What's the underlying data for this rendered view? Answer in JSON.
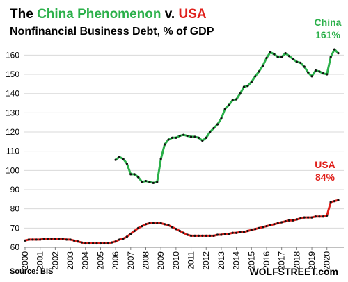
{
  "title": {
    "prefix": "The ",
    "china_part": "China Phenomenon",
    "middle": " v. ",
    "usa_part": "USA",
    "china_color": "#2bb04a",
    "usa_color": "#e0201b"
  },
  "subtitle": "Nonfinancial Business Debt, % of GDP",
  "source": "Source: BIS",
  "brand": "WOLFSTREET.com",
  "chart_data": {
    "type": "line",
    "title": "The China Phenomenon v. USA",
    "subtitle": "Nonfinancial Business Debt, % of GDP",
    "xlabel": "",
    "ylabel": "",
    "x_range": [
      2000.0,
      2020.75
    ],
    "ylim": [
      60,
      167
    ],
    "y_ticks": [
      60,
      70,
      80,
      90,
      100,
      110,
      120,
      130,
      140,
      150,
      160
    ],
    "x_ticks": [
      "2000",
      "2001",
      "2002",
      "2003",
      "2004",
      "2005",
      "2006",
      "2007",
      "2008",
      "2009",
      "2010",
      "2011",
      "2012",
      "2013",
      "2014",
      "2015",
      "2016",
      "2017",
      "2018",
      "2019",
      "2020"
    ],
    "grid": "horizontal",
    "series": [
      {
        "name": "China",
        "color": "#2bb04a",
        "end_label_name": "China",
        "end_label_value": "161%",
        "points": [
          [
            2006.0,
            105.5
          ],
          [
            2006.25,
            107.0
          ],
          [
            2006.5,
            106.0
          ],
          [
            2006.75,
            103.5
          ],
          [
            2007.0,
            98.0
          ],
          [
            2007.25,
            98.0
          ],
          [
            2007.5,
            96.5
          ],
          [
            2007.75,
            94.0
          ],
          [
            2008.0,
            94.5
          ],
          [
            2008.25,
            94.0
          ],
          [
            2008.5,
            93.5
          ],
          [
            2008.75,
            94.0
          ],
          [
            2009.0,
            106.0
          ],
          [
            2009.25,
            113.5
          ],
          [
            2009.5,
            116.0
          ],
          [
            2009.75,
            117.0
          ],
          [
            2010.0,
            117.0
          ],
          [
            2010.25,
            118.0
          ],
          [
            2010.5,
            118.5
          ],
          [
            2010.75,
            118.0
          ],
          [
            2011.0,
            117.5
          ],
          [
            2011.25,
            117.5
          ],
          [
            2011.5,
            117.0
          ],
          [
            2011.75,
            115.5
          ],
          [
            2012.0,
            117.0
          ],
          [
            2012.25,
            120.0
          ],
          [
            2012.5,
            122.0
          ],
          [
            2012.75,
            124.0
          ],
          [
            2013.0,
            127.0
          ],
          [
            2013.25,
            132.0
          ],
          [
            2013.5,
            134.0
          ],
          [
            2013.75,
            136.5
          ],
          [
            2014.0,
            137.0
          ],
          [
            2014.25,
            140.0
          ],
          [
            2014.5,
            143.5
          ],
          [
            2014.75,
            144.0
          ],
          [
            2015.0,
            146.0
          ],
          [
            2015.25,
            149.0
          ],
          [
            2015.5,
            151.5
          ],
          [
            2015.75,
            154.5
          ],
          [
            2016.0,
            158.5
          ],
          [
            2016.25,
            161.5
          ],
          [
            2016.5,
            160.5
          ],
          [
            2016.75,
            159.0
          ],
          [
            2017.0,
            159.0
          ],
          [
            2017.25,
            161.0
          ],
          [
            2017.5,
            159.5
          ],
          [
            2017.75,
            158.0
          ],
          [
            2018.0,
            156.5
          ],
          [
            2018.25,
            156.0
          ],
          [
            2018.5,
            154.0
          ],
          [
            2018.75,
            151.0
          ],
          [
            2019.0,
            149.0
          ],
          [
            2019.25,
            152.0
          ],
          [
            2019.5,
            151.5
          ],
          [
            2019.75,
            150.5
          ],
          [
            2020.0,
            150.0
          ],
          [
            2020.25,
            159.0
          ],
          [
            2020.5,
            163.0
          ],
          [
            2020.75,
            161.0
          ]
        ]
      },
      {
        "name": "USA",
        "color": "#e0201b",
        "end_label_name": "USA",
        "end_label_value": "84%",
        "points": [
          [
            2000.0,
            63.5
          ],
          [
            2000.25,
            64.0
          ],
          [
            2000.5,
            64.0
          ],
          [
            2000.75,
            64.0
          ],
          [
            2001.0,
            64.0
          ],
          [
            2001.25,
            64.5
          ],
          [
            2001.5,
            64.5
          ],
          [
            2001.75,
            64.5
          ],
          [
            2002.0,
            64.5
          ],
          [
            2002.25,
            64.5
          ],
          [
            2002.5,
            64.5
          ],
          [
            2002.75,
            64.0
          ],
          [
            2003.0,
            64.0
          ],
          [
            2003.25,
            63.5
          ],
          [
            2003.5,
            63.0
          ],
          [
            2003.75,
            62.5
          ],
          [
            2004.0,
            62.0
          ],
          [
            2004.25,
            62.0
          ],
          [
            2004.5,
            62.0
          ],
          [
            2004.75,
            62.0
          ],
          [
            2005.0,
            62.0
          ],
          [
            2005.25,
            62.0
          ],
          [
            2005.5,
            62.0
          ],
          [
            2005.75,
            62.5
          ],
          [
            2006.0,
            63.0
          ],
          [
            2006.25,
            64.0
          ],
          [
            2006.5,
            64.5
          ],
          [
            2006.75,
            65.5
          ],
          [
            2007.0,
            67.0
          ],
          [
            2007.25,
            68.5
          ],
          [
            2007.5,
            70.0
          ],
          [
            2007.75,
            71.0
          ],
          [
            2008.0,
            72.0
          ],
          [
            2008.25,
            72.5
          ],
          [
            2008.5,
            72.5
          ],
          [
            2008.75,
            72.5
          ],
          [
            2009.0,
            72.5
          ],
          [
            2009.25,
            72.0
          ],
          [
            2009.5,
            71.5
          ],
          [
            2009.75,
            70.5
          ],
          [
            2010.0,
            69.5
          ],
          [
            2010.25,
            68.5
          ],
          [
            2010.5,
            67.5
          ],
          [
            2010.75,
            66.5
          ],
          [
            2011.0,
            66.0
          ],
          [
            2011.25,
            66.0
          ],
          [
            2011.5,
            66.0
          ],
          [
            2011.75,
            66.0
          ],
          [
            2012.0,
            66.0
          ],
          [
            2012.25,
            66.0
          ],
          [
            2012.5,
            66.0
          ],
          [
            2012.75,
            66.5
          ],
          [
            2013.0,
            66.5
          ],
          [
            2013.25,
            67.0
          ],
          [
            2013.5,
            67.0
          ],
          [
            2013.75,
            67.5
          ],
          [
            2014.0,
            67.5
          ],
          [
            2014.25,
            68.0
          ],
          [
            2014.5,
            68.0
          ],
          [
            2014.75,
            68.5
          ],
          [
            2015.0,
            69.0
          ],
          [
            2015.25,
            69.5
          ],
          [
            2015.5,
            70.0
          ],
          [
            2015.75,
            70.5
          ],
          [
            2016.0,
            71.0
          ],
          [
            2016.25,
            71.5
          ],
          [
            2016.5,
            72.0
          ],
          [
            2016.75,
            72.5
          ],
          [
            2017.0,
            73.0
          ],
          [
            2017.25,
            73.5
          ],
          [
            2017.5,
            74.0
          ],
          [
            2017.75,
            74.0
          ],
          [
            2018.0,
            74.5
          ],
          [
            2018.25,
            75.0
          ],
          [
            2018.5,
            75.5
          ],
          [
            2018.75,
            75.5
          ],
          [
            2019.0,
            75.5
          ],
          [
            2019.25,
            76.0
          ],
          [
            2019.5,
            76.0
          ],
          [
            2019.75,
            76.0
          ],
          [
            2020.0,
            76.5
          ],
          [
            2020.25,
            83.5
          ],
          [
            2020.5,
            84.0
          ],
          [
            2020.75,
            84.5
          ]
        ]
      }
    ]
  }
}
